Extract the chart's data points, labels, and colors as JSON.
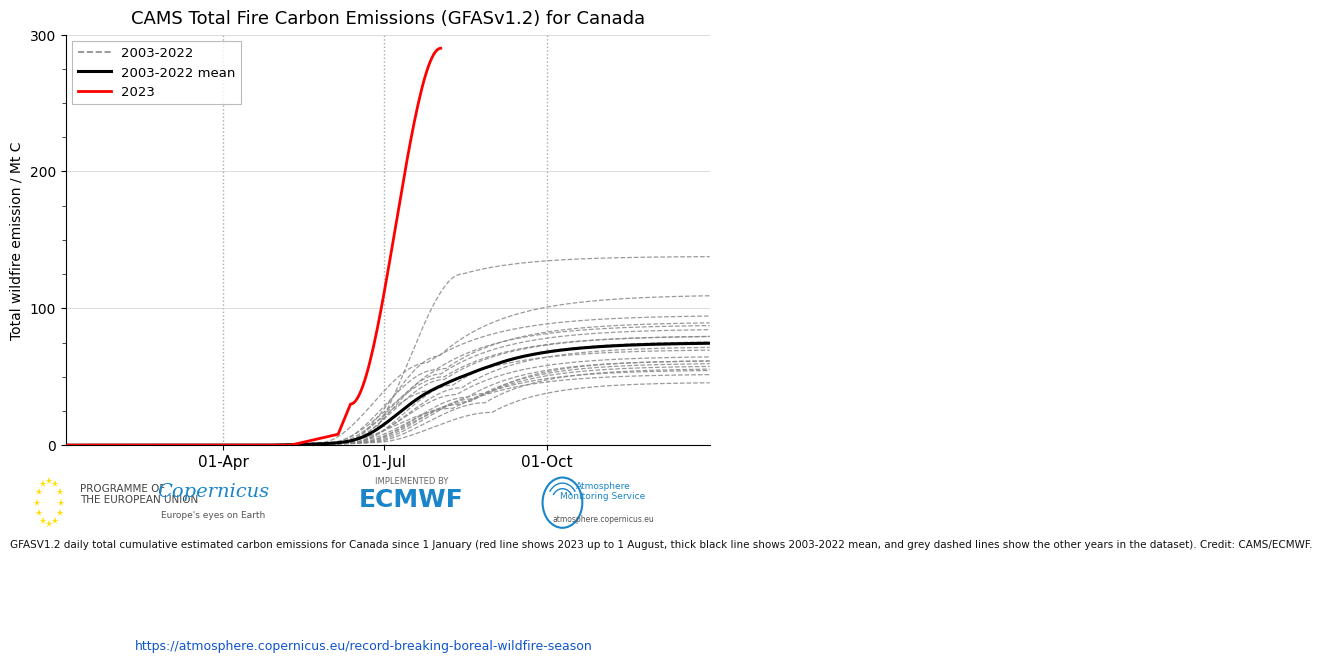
{
  "title": "CAMS Total Fire Carbon Emissions (GFASv1.2) for Canada",
  "ylabel": "Total wildfire emission / Mt C",
  "xtick_labels": [
    "01-Apr",
    "01-Jul",
    "01-Oct"
  ],
  "xtick_positions": [
    90,
    181,
    273
  ],
  "ylim": [
    0,
    300
  ],
  "yticks": [
    0,
    100,
    200,
    300
  ],
  "xlim": [
    1,
    365
  ],
  "vlines": [
    90,
    181,
    273
  ],
  "legend_labels": [
    "2003-2022",
    "2003-2022 mean",
    "2023"
  ],
  "footer_text": "GFASV1.2 daily total cumulative estimated carbon emissions for Canada since 1 January (red line shows 2023 up to 1 August, thick black line shows 2003-2022 mean, and grey dashed lines show the other years in the dataset). Credit: CAMS/ECMWF.",
  "url_text": "https://atmosphere.copernicus.eu/record-breaking-boreal-wildfire-season",
  "background_color": "#ffffff",
  "mean_color": "#000000",
  "year2023_color": "#ff0000",
  "historical_color": "#888888",
  "vline_color": "#aaaaaa",
  "grid_color": "#cccccc"
}
